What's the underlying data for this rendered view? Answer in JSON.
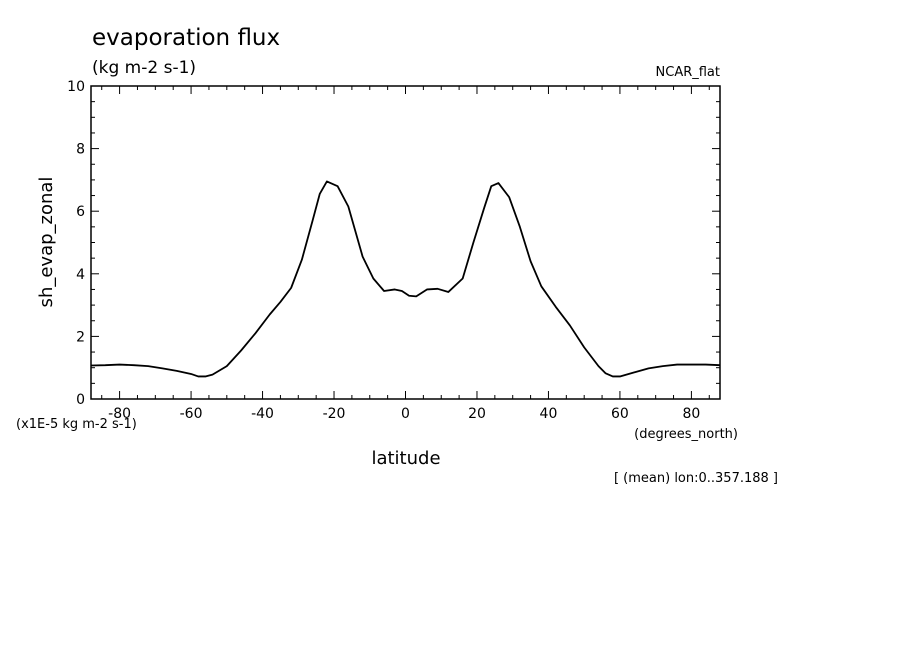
{
  "header": {
    "title": "evaporation flux",
    "units": "(kg m-2 s-1)",
    "colormap_label": "NCAR_flat"
  },
  "footer": {
    "scale_note": "(x1E-5 kg m-2 s-1)",
    "x_units": "(degrees_north)",
    "averaging_note": "[ (mean) lon:0..357.188 ]"
  },
  "chart_data": {
    "type": "line",
    "title": "evaporation flux",
    "xlabel": "latitude",
    "ylabel": "sh_evap_zonal",
    "xlim": [
      -88,
      88
    ],
    "ylim": [
      0,
      10
    ],
    "xticks": [
      -80,
      -60,
      -40,
      -20,
      0,
      20,
      40,
      60,
      80
    ],
    "xtick_labels": [
      "-80",
      "-60",
      "-40",
      "-20",
      "0",
      "20",
      "40",
      "60",
      "80"
    ],
    "yticks": [
      0,
      2,
      4,
      6,
      8,
      10
    ],
    "ytick_labels": [
      "0",
      "2",
      "4",
      "6",
      "8",
      "10"
    ],
    "grid": false,
    "series": [
      {
        "color": "#000000",
        "x": [
          -88,
          -84,
          -80,
          -76,
          -72,
          -68,
          -64,
          -60,
          -58,
          -56,
          -54,
          -50,
          -46,
          -42,
          -38,
          -35,
          -32,
          -29,
          -26,
          -24,
          -22,
          -19,
          -16,
          -12,
          -9,
          -6,
          -3,
          -1,
          1,
          3,
          6,
          9,
          12,
          16,
          19,
          22,
          24,
          26,
          29,
          32,
          35,
          38,
          42,
          46,
          50,
          54,
          56,
          58,
          60,
          64,
          68,
          72,
          76,
          80,
          84,
          88
        ],
        "values": [
          1.07,
          1.08,
          1.1,
          1.08,
          1.05,
          0.98,
          0.9,
          0.8,
          0.72,
          0.72,
          0.78,
          1.05,
          1.55,
          2.1,
          2.7,
          3.1,
          3.55,
          4.45,
          5.7,
          6.55,
          6.95,
          6.8,
          6.15,
          4.55,
          3.85,
          3.45,
          3.5,
          3.45,
          3.3,
          3.28,
          3.5,
          3.52,
          3.42,
          3.85,
          5.0,
          6.1,
          6.8,
          6.9,
          6.45,
          5.5,
          4.4,
          3.6,
          2.95,
          2.35,
          1.65,
          1.05,
          0.82,
          0.72,
          0.72,
          0.85,
          0.98,
          1.05,
          1.1,
          1.1,
          1.1,
          1.08
        ]
      }
    ]
  }
}
